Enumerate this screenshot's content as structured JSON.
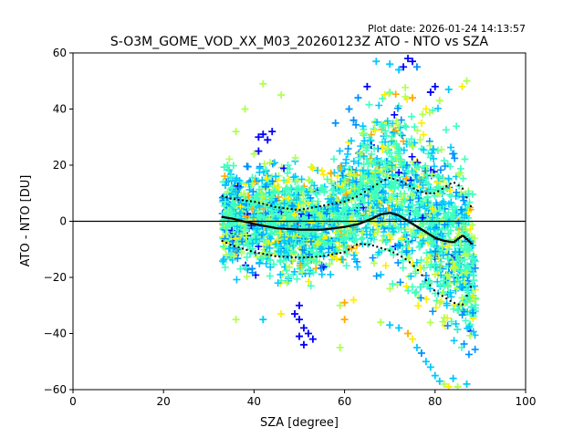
{
  "plot_date": "Plot date: 2026-01-24 14:13:57",
  "chart_data": {
    "type": "scatter",
    "title": "S-O3M_GOME_VOD_XX_M03_20260123Z ATO - NTO vs SZA",
    "xlabel": "SZA [degree]",
    "ylabel": "ATO - NTO [DU]",
    "xlim": [
      0,
      100
    ],
    "ylim": [
      -60,
      60
    ],
    "xticks": [
      0,
      20,
      40,
      60,
      80,
      100
    ],
    "yticks": [
      -60,
      -40,
      -20,
      0,
      20,
      40,
      60
    ],
    "grid": false,
    "legend": "none",
    "reference_line_y": 0,
    "marker": "plus",
    "colors": [
      "#3fffc0",
      "#00c8ff",
      "#0090ff",
      "#0000ff",
      "#b0ff50",
      "#ffee00",
      "#ffaa00"
    ],
    "envelope": {
      "x": [
        33,
        35,
        40,
        45,
        50,
        55,
        60,
        63,
        66,
        68,
        70,
        72,
        75,
        78,
        80,
        82,
        84,
        86,
        87,
        88,
        89
      ],
      "upper": [
        27,
        27,
        27,
        28,
        24,
        24,
        30,
        40,
        50,
        54,
        56,
        55,
        52,
        48,
        44,
        40,
        42,
        40,
        30,
        20,
        10
      ],
      "lower": [
        -22,
        -25,
        -27,
        -28,
        -28,
        -27,
        -24,
        -23,
        -24,
        -27,
        -30,
        -35,
        -38,
        -42,
        -45,
        -50,
        -54,
        -58,
        -60,
        -60,
        -60
      ]
    },
    "series": [
      {
        "style": "black-dotted",
        "x": [
          33,
          35,
          40,
          45,
          50,
          55,
          60,
          63,
          66,
          68,
          70,
          72,
          74,
          76,
          78,
          80,
          82,
          84,
          86,
          88
        ],
        "y": [
          9,
          8,
          7,
          5,
          4,
          5.5,
          7,
          9,
          12,
          14,
          15.5,
          14.5,
          13,
          11,
          10,
          10,
          12,
          14,
          12,
          5
        ]
      },
      {
        "style": "black-solid",
        "x": [
          33,
          35,
          40,
          45,
          50,
          55,
          60,
          63,
          66,
          68,
          70,
          72,
          74,
          76,
          78,
          80,
          82,
          84,
          86,
          88
        ],
        "y": [
          1.5,
          1,
          -1,
          -2.5,
          -3,
          -3,
          -2,
          -1,
          1,
          2.5,
          3,
          2,
          0,
          -2,
          -4,
          -6,
          -7,
          -7.5,
          -5,
          -8
        ]
      },
      {
        "style": "black-dotted",
        "x": [
          33,
          35,
          40,
          45,
          50,
          55,
          60,
          63,
          66,
          68,
          70,
          72,
          74,
          76,
          78,
          80,
          82,
          84,
          86,
          88
        ],
        "y": [
          -7,
          -8.5,
          -11,
          -12.5,
          -13,
          -12.5,
          -11,
          -8,
          -8.5,
          -9.5,
          -10.5,
          -12,
          -14,
          -17,
          -21,
          -25,
          -27,
          -29,
          -30,
          -23
        ]
      }
    ],
    "outliers": [
      {
        "x": 41,
        "y": 30,
        "color": "#0000ff"
      },
      {
        "x": 42,
        "y": 31,
        "color": "#0000ff"
      },
      {
        "x": 43,
        "y": 29,
        "color": "#0000ff"
      },
      {
        "x": 44,
        "y": 32,
        "color": "#0000ff"
      },
      {
        "x": 41,
        "y": 25,
        "color": "#0000ff"
      },
      {
        "x": 42,
        "y": 49,
        "color": "#b0ff50"
      },
      {
        "x": 46,
        "y": 45,
        "color": "#b0ff50"
      },
      {
        "x": 38,
        "y": 40,
        "color": "#b0ff50"
      },
      {
        "x": 36,
        "y": 32,
        "color": "#b0ff50"
      },
      {
        "x": 40,
        "y": 24,
        "color": "#b0ff50"
      },
      {
        "x": 50,
        "y": -30,
        "color": "#0000ff"
      },
      {
        "x": 50,
        "y": -35,
        "color": "#0000ff"
      },
      {
        "x": 51,
        "y": -38,
        "color": "#0000ff"
      },
      {
        "x": 50,
        "y": -41,
        "color": "#0000ff"
      },
      {
        "x": 51,
        "y": -44,
        "color": "#0000ff"
      },
      {
        "x": 49,
        "y": -33,
        "color": "#0000ff"
      },
      {
        "x": 52,
        "y": -40,
        "color": "#0000ff"
      },
      {
        "x": 53,
        "y": -42,
        "color": "#0000ff"
      },
      {
        "x": 36,
        "y": -35,
        "color": "#b0ff50"
      },
      {
        "x": 42,
        "y": -35,
        "color": "#00c8ff"
      },
      {
        "x": 46,
        "y": -33,
        "color": "#ffee00"
      },
      {
        "x": 59,
        "y": -30,
        "color": "#b0ff50"
      },
      {
        "x": 59,
        "y": -45,
        "color": "#b0ff50"
      },
      {
        "x": 60,
        "y": -35,
        "color": "#ffaa00"
      },
      {
        "x": 68,
        "y": -36,
        "color": "#b0ff50"
      },
      {
        "x": 70,
        "y": -37,
        "color": "#00c8ff"
      },
      {
        "x": 72,
        "y": -38,
        "color": "#00c8ff"
      },
      {
        "x": 55,
        "y": 18,
        "color": "#ffee00"
      },
      {
        "x": 57,
        "y": 17,
        "color": "#ffaa00"
      },
      {
        "x": 53,
        "y": 19,
        "color": "#ffee00"
      },
      {
        "x": 62,
        "y": 36,
        "color": "#0090ff"
      },
      {
        "x": 61,
        "y": 40,
        "color": "#0090ff"
      },
      {
        "x": 63,
        "y": 44,
        "color": "#0090ff"
      },
      {
        "x": 58,
        "y": 35,
        "color": "#0090ff"
      },
      {
        "x": 65,
        "y": 48,
        "color": "#0000ff"
      },
      {
        "x": 67,
        "y": 57,
        "color": "#00c8ff"
      },
      {
        "x": 70,
        "y": 56,
        "color": "#00c8ff"
      },
      {
        "x": 74,
        "y": 58,
        "color": "#0000ff"
      },
      {
        "x": 75,
        "y": 57,
        "color": "#0000ff"
      },
      {
        "x": 73,
        "y": 55,
        "color": "#0000ff"
      },
      {
        "x": 72,
        "y": 54,
        "color": "#00c8ff"
      },
      {
        "x": 76,
        "y": 55,
        "color": "#0090ff"
      },
      {
        "x": 79,
        "y": 46,
        "color": "#0000ff"
      },
      {
        "x": 80,
        "y": 48,
        "color": "#0000ff"
      },
      {
        "x": 83,
        "y": 47,
        "color": "#00c8ff"
      },
      {
        "x": 81,
        "y": 43,
        "color": "#b0ff50"
      },
      {
        "x": 87,
        "y": 50,
        "color": "#b0ff50"
      },
      {
        "x": 86,
        "y": 48,
        "color": "#ffee00"
      },
      {
        "x": 78,
        "y": 40,
        "color": "#ffee00"
      },
      {
        "x": 77,
        "y": 35,
        "color": "#ffee00"
      },
      {
        "x": 75,
        "y": 44,
        "color": "#ffaa00"
      },
      {
        "x": 76,
        "y": -45,
        "color": "#00c8ff"
      },
      {
        "x": 77,
        "y": -47,
        "color": "#0090ff"
      },
      {
        "x": 78,
        "y": -50,
        "color": "#00c8ff"
      },
      {
        "x": 79,
        "y": -52,
        "color": "#00c8ff"
      },
      {
        "x": 80,
        "y": -55,
        "color": "#00c8ff"
      },
      {
        "x": 81,
        "y": -57,
        "color": "#00c8ff"
      },
      {
        "x": 82,
        "y": -58,
        "color": "#b0ff50"
      },
      {
        "x": 83,
        "y": -59,
        "color": "#ffee00"
      },
      {
        "x": 84,
        "y": -56,
        "color": "#00c8ff"
      },
      {
        "x": 85,
        "y": -59,
        "color": "#b0ff50"
      },
      {
        "x": 87,
        "y": -58,
        "color": "#00c8ff"
      },
      {
        "x": 75,
        "y": -42,
        "color": "#ffee00"
      },
      {
        "x": 74,
        "y": -40,
        "color": "#ffaa00"
      },
      {
        "x": 60,
        "y": -29,
        "color": "#ffaa00"
      },
      {
        "x": 62,
        "y": -28,
        "color": "#ffee00"
      }
    ]
  }
}
